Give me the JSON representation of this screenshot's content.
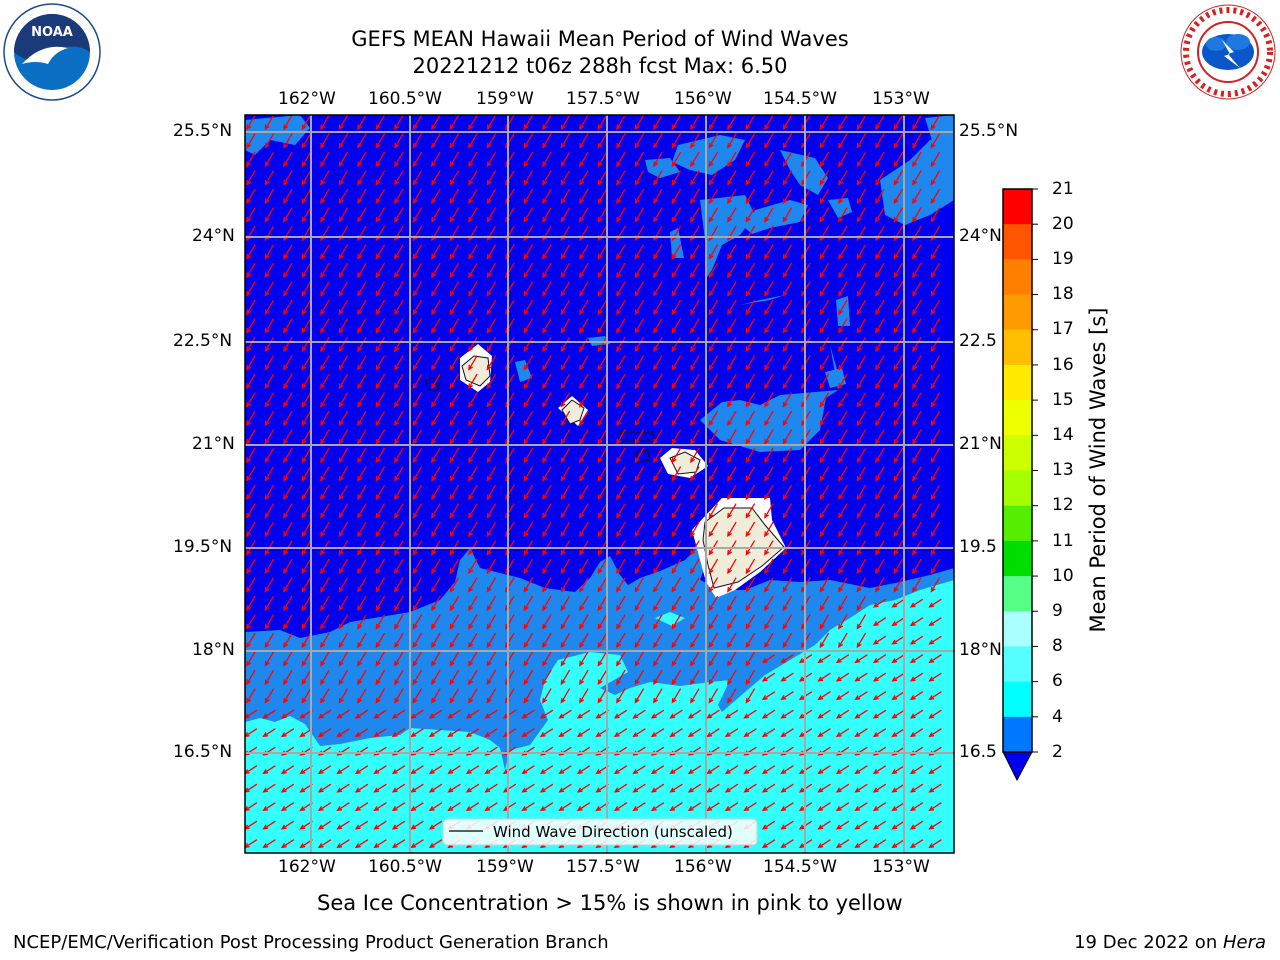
{
  "title_line1": "GEFS MEAN Hawaii Mean Period of Wind Waves",
  "title_line2": "20221212 t06z 288h fcst   Max: 6.50",
  "x_ticks": [
    "162°W",
    "160.5°W",
    "159°W",
    "157.5°W",
    "156°W",
    "154.5°W",
    "153°W"
  ],
  "y_ticks": [
    "25.5°N",
    "24°N",
    "22.5°N",
    "21°N",
    "19.5°N",
    "18°N",
    "16.5°N"
  ],
  "y_ticks_right": [
    "25.5°N",
    "24°N",
    "22.5",
    "21°N",
    "19.5",
    "18°N",
    "16.5"
  ],
  "legend_label": "Wind Wave Direction (unscaled)",
  "colorbar": {
    "label": "Mean Period of Wind Waves [s]",
    "ticks": [
      "21",
      "20",
      "19",
      "18",
      "17",
      "16",
      "15",
      "14",
      "13",
      "12",
      "11",
      "10",
      "9",
      "8",
      "6",
      "4",
      "2"
    ],
    "colors": [
      "#ff0000",
      "#ff2a00",
      "#ff5500",
      "#ff7f00",
      "#ff9a00",
      "#ffbf00",
      "#ffea00",
      "#eeff00",
      "#ccff00",
      "#a6ff00",
      "#55ee00",
      "#00dd00",
      "#55ff88",
      "#aaffff",
      "#55ffff",
      "#00ffff",
      "#0077ff"
    ],
    "under_color": "#0000ee"
  },
  "sea_ice_note": "Sea Ice Concentration > 15% is shown in pink to yellow",
  "footer_left": "NCEP/EMC/Verification Post Processing Product Generation Branch",
  "footer_right_prefix": "19 Dec 2022 on ",
  "footer_right_host": "Hera",
  "colors": {
    "deep_blue": "#0000ee",
    "mid_blue": "#1e88ee",
    "cyan": "#33ffff",
    "land": "#efedda",
    "arrow": "#ff0000",
    "grid": "#a8a8a8"
  }
}
